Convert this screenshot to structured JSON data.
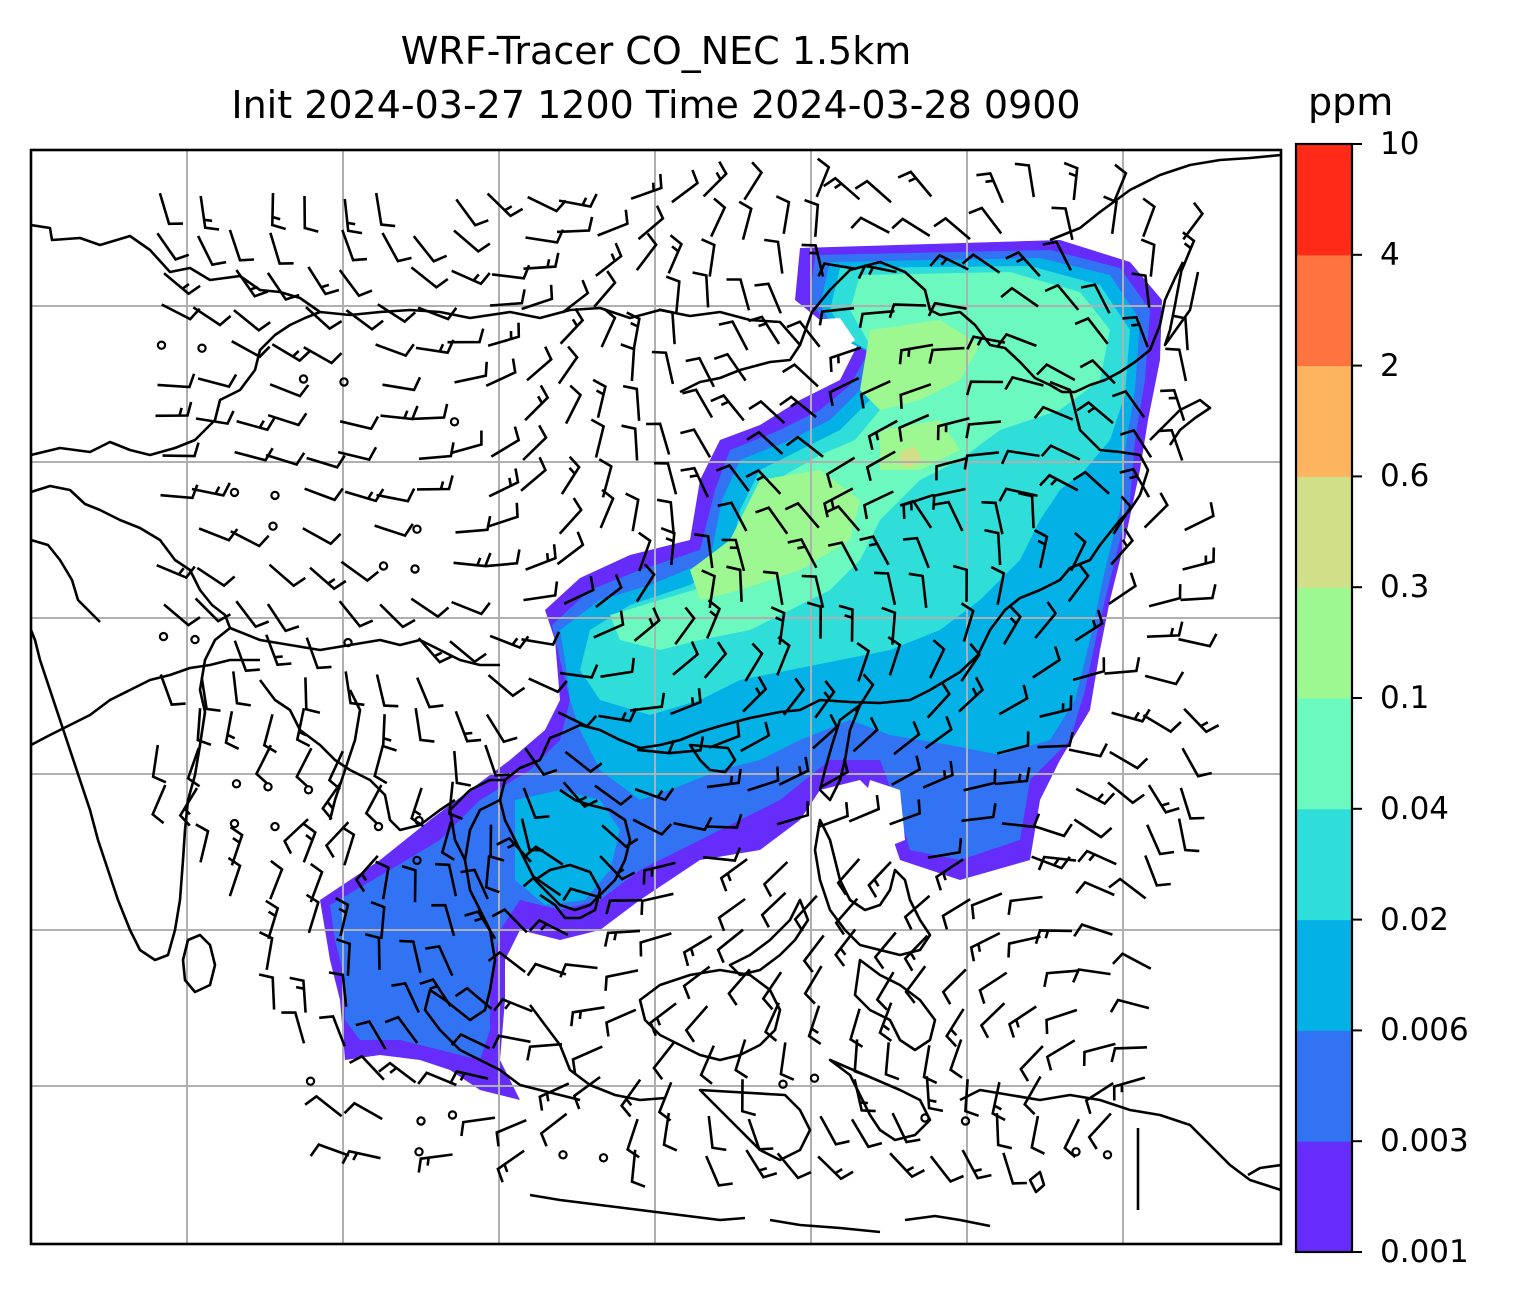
{
  "title": {
    "line1": "WRF-Tracer CO_NEC 1.5km",
    "line2": "Init 2024-03-27 1200 Time 2024-03-28 0900"
  },
  "colorbar": {
    "unit": "ppm",
    "levels": [
      "0.001",
      "0.003",
      "0.006",
      "0.02",
      "0.04",
      "0.1",
      "0.3",
      "0.6",
      "2",
      "4",
      "10"
    ],
    "colors": [
      "#652cfa",
      "#3173f2",
      "#04b1e6",
      "#2fded8",
      "#6bf9bf",
      "#9ef891",
      "#d1e088",
      "#fdb45f",
      "#fe7340",
      "#ff2b18"
    ]
  },
  "map": {
    "frame_color": "#000000",
    "gridline_color": "#b0b0b0",
    "coastline_color": "#000000",
    "barb_color": "#000000"
  }
}
